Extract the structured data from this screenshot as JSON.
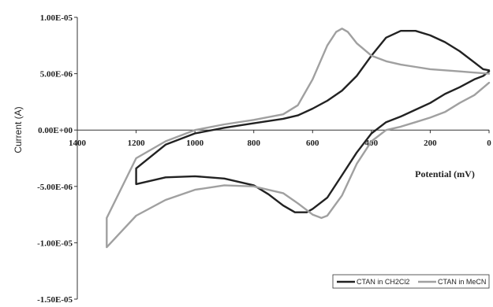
{
  "chart_data": {
    "type": "line",
    "title": "",
    "xlabel": "Potential (mV)",
    "ylabel": "Current  (A)",
    "xlim": [
      1400,
      0
    ],
    "ylim": [
      -1.5e-05,
      1e-05
    ],
    "x_ticks": [
      "1400",
      "1200",
      "1000",
      "800",
      "600",
      "400",
      "200",
      "0"
    ],
    "y_ticks": [
      "1.00E-05",
      "5.00E-06",
      "0.00E+00",
      "-5.00E-06",
      "-1.00E-05",
      "-1.50E-05"
    ],
    "grid": false,
    "legend_position": "bottom-right",
    "series": [
      {
        "name": "CTAN in CH2Cl2",
        "color": "#222222",
        "x": [
          0,
          20,
          50,
          100,
          150,
          200,
          250,
          300,
          350,
          400,
          450,
          500,
          550,
          600,
          650,
          700,
          800,
          900,
          1000,
          1100,
          1200,
          1200,
          1100,
          1000,
          900,
          800,
          750,
          700,
          660,
          620,
          600,
          550,
          500,
          450,
          400,
          350,
          300,
          250,
          200,
          150,
          100,
          50,
          20,
          0
        ],
        "y": [
          5.3e-06,
          5.4e-06,
          6e-06,
          7e-06,
          7.8e-06,
          8.4e-06,
          8.8e-06,
          8.8e-06,
          8.2e-06,
          6.6e-06,
          4.8e-06,
          3.5e-06,
          2.6e-06,
          1.9e-06,
          1.3e-06,
          1e-06,
          6e-07,
          2e-07,
          -3e-07,
          -1.3e-06,
          -3.4e-06,
          -4.8e-06,
          -4.2e-06,
          -4.1e-06,
          -4.3e-06,
          -4.9e-06,
          -5.7e-06,
          -6.7e-06,
          -7.3e-06,
          -7.3e-06,
          -7e-06,
          -6e-06,
          -4e-06,
          -2e-06,
          -3e-07,
          7e-07,
          1.2e-06,
          1.8e-06,
          2.4e-06,
          3.2e-06,
          3.8e-06,
          4.5e-06,
          4.8e-06,
          5.2e-06
        ]
      },
      {
        "name": "CTAN in MeCN",
        "color": "#a0a0a0",
        "x": [
          0,
          50,
          100,
          150,
          200,
          250,
          300,
          350,
          400,
          450,
          480,
          500,
          520,
          550,
          600,
          650,
          700,
          800,
          900,
          1000,
          1100,
          1200,
          1300,
          1300,
          1250,
          1200,
          1100,
          1000,
          900,
          800,
          700,
          650,
          600,
          570,
          550,
          500,
          450,
          400,
          350,
          300,
          250,
          200,
          150,
          100,
          50,
          0
        ],
        "y": [
          5e-06,
          5.1e-06,
          5.2e-06,
          5.3e-06,
          5.4e-06,
          5.6e-06,
          5.8e-06,
          6.1e-06,
          6.6e-06,
          7.7e-06,
          8.7e-06,
          9e-06,
          8.7e-06,
          7.5e-06,
          4.5e-06,
          2.2e-06,
          1.4e-06,
          9e-07,
          5e-07,
          0.0,
          -1e-06,
          -2.5e-06,
          -7.8e-06,
          -1.04e-05,
          -9e-06,
          -7.6e-06,
          -6.2e-06,
          -5.3e-06,
          -4.9e-06,
          -5e-06,
          -5.6e-06,
          -6.5e-06,
          -7.5e-06,
          -7.8e-06,
          -7.6e-06,
          -5.8e-06,
          -3e-06,
          -1e-06,
          0.0,
          3e-07,
          7e-07,
          1.1e-06,
          1.6e-06,
          2.4e-06,
          3.1e-06,
          4.2e-06
        ]
      }
    ]
  }
}
